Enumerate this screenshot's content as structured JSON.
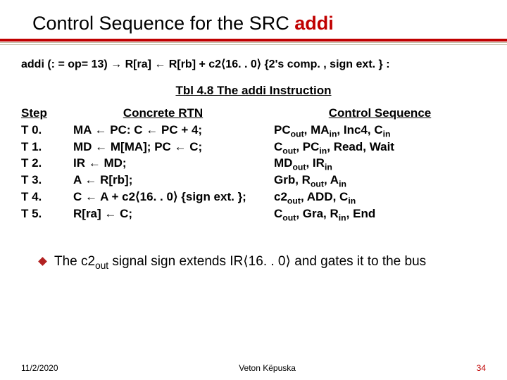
{
  "title": {
    "prefix": "Control Sequence for the SRC ",
    "accent": "addi"
  },
  "definition": "addi (: = op= 13) → R[ra] ← R[rb] + c2⟨16. . 0⟩ {2's comp. , sign ext. } :",
  "table": {
    "caption_prefix": "Tbl 4.8 The ",
    "caption_accent": "addi",
    "caption_suffix": " Instruction",
    "headers": {
      "c1": "Step",
      "c2": "Concrete RTN",
      "c3": "Control Sequence"
    },
    "rows": [
      {
        "step": "T 0.",
        "rtn": "MA ← PC:  C ← PC + 4;",
        "ctrl": "PC<sub>out</sub>, MA<sub>in</sub>, Inc4, C<sub>in</sub>"
      },
      {
        "step": "T 1.",
        "rtn": "MD ← M[MA];  PC ← C;",
        "ctrl": "C<sub>out</sub>, PC<sub>in</sub>, Read, Wait"
      },
      {
        "step": "T 2.",
        "rtn": "IR ← MD;",
        "ctrl": "MD<sub>out</sub>, IR<sub>in</sub>"
      },
      {
        "step": "T 3.",
        "rtn": "A ← R[rb];",
        "ctrl": "Grb, R<sub>out</sub>, A<sub>in</sub>"
      },
      {
        "step": "T 4.",
        "rtn": "C ← A +  c2⟨16. . 0⟩ {sign ext. };",
        "ctrl": "c2<sub>out</sub>, ADD, C<sub>in</sub>"
      },
      {
        "step": "T 5.",
        "rtn": "R[ra] ← C;",
        "ctrl": "C<sub>out</sub>, Gra, R<sub>in</sub>, End"
      }
    ]
  },
  "note": "The c2<sub>out</sub> signal sign extends IR⟨16. . 0⟩ and gates it to the bus",
  "footer": {
    "date": "11/2/2020",
    "author": "Veton Këpuska",
    "page": "34"
  },
  "colors": {
    "accent": "#c00000"
  }
}
